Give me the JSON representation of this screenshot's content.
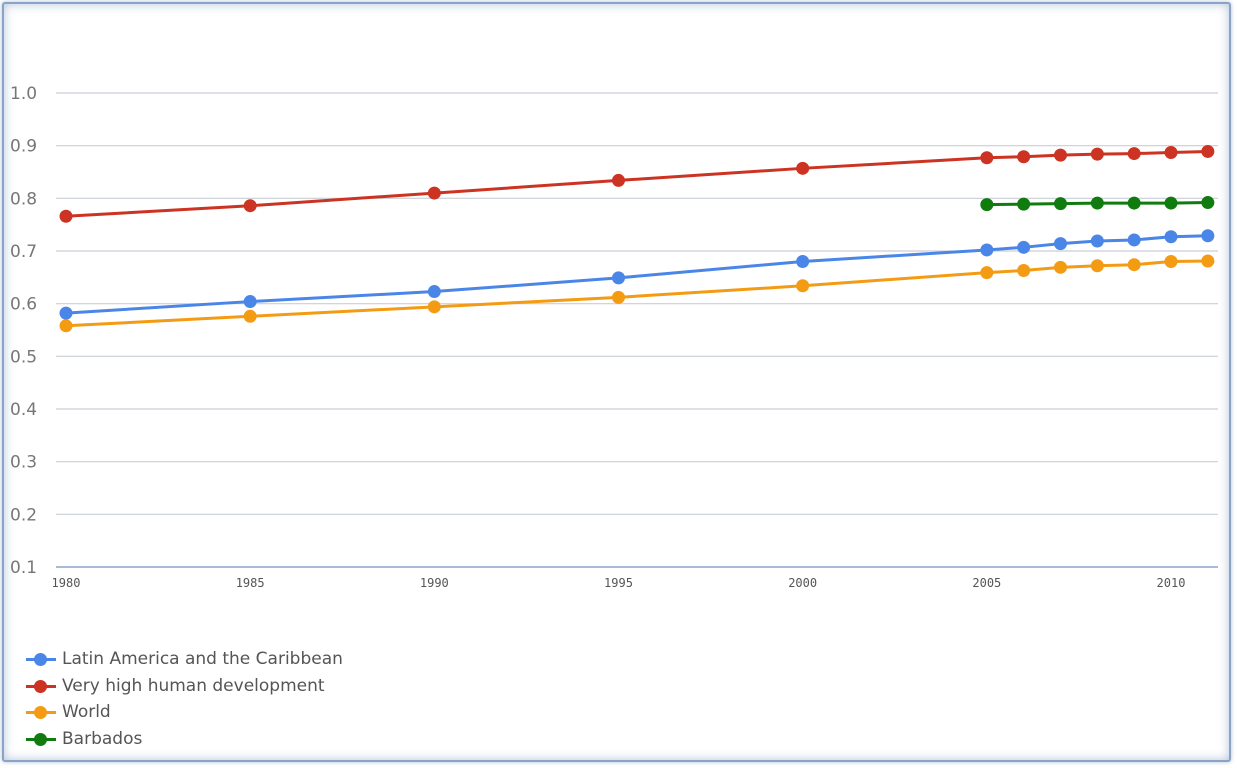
{
  "chart_data": {
    "type": "line",
    "title": "",
    "xlabel": "",
    "ylabel": "",
    "ylim": [
      0.1,
      1.0
    ],
    "yticks": [
      "1.0",
      "0.9",
      "0.8",
      "0.7",
      "0.6",
      "0.5",
      "0.4",
      "0.3",
      "0.2",
      "0.1"
    ],
    "xticks": [
      "1980",
      "1985",
      "1990",
      "1995",
      "2000",
      "2005",
      "2010"
    ],
    "grid": true,
    "legend_position": "bottom-left",
    "x": [
      1980,
      1985,
      1990,
      1995,
      2000,
      2005,
      2006,
      2007,
      2008,
      2009,
      2010,
      2011
    ],
    "series": [
      {
        "name": "Latin America and the Caribbean",
        "color": "#4a86e8",
        "values": [
          0.582,
          0.604,
          0.623,
          0.649,
          0.68,
          0.702,
          0.707,
          0.714,
          0.719,
          0.721,
          0.727,
          0.729
        ]
      },
      {
        "name": "Very high human development",
        "color": "#cc3322",
        "values": [
          0.766,
          0.786,
          0.81,
          0.834,
          0.857,
          0.877,
          0.879,
          0.882,
          0.884,
          0.885,
          0.887,
          0.889
        ]
      },
      {
        "name": "World",
        "color": "#f49b14",
        "values": [
          0.558,
          0.576,
          0.594,
          0.612,
          0.634,
          0.659,
          0.663,
          0.669,
          0.672,
          0.674,
          0.68,
          0.681
        ]
      },
      {
        "name": "Barbados",
        "color": "#107c10",
        "values": [
          null,
          null,
          null,
          null,
          null,
          0.788,
          0.789,
          0.79,
          0.791,
          0.791,
          0.791,
          0.792
        ]
      }
    ]
  }
}
